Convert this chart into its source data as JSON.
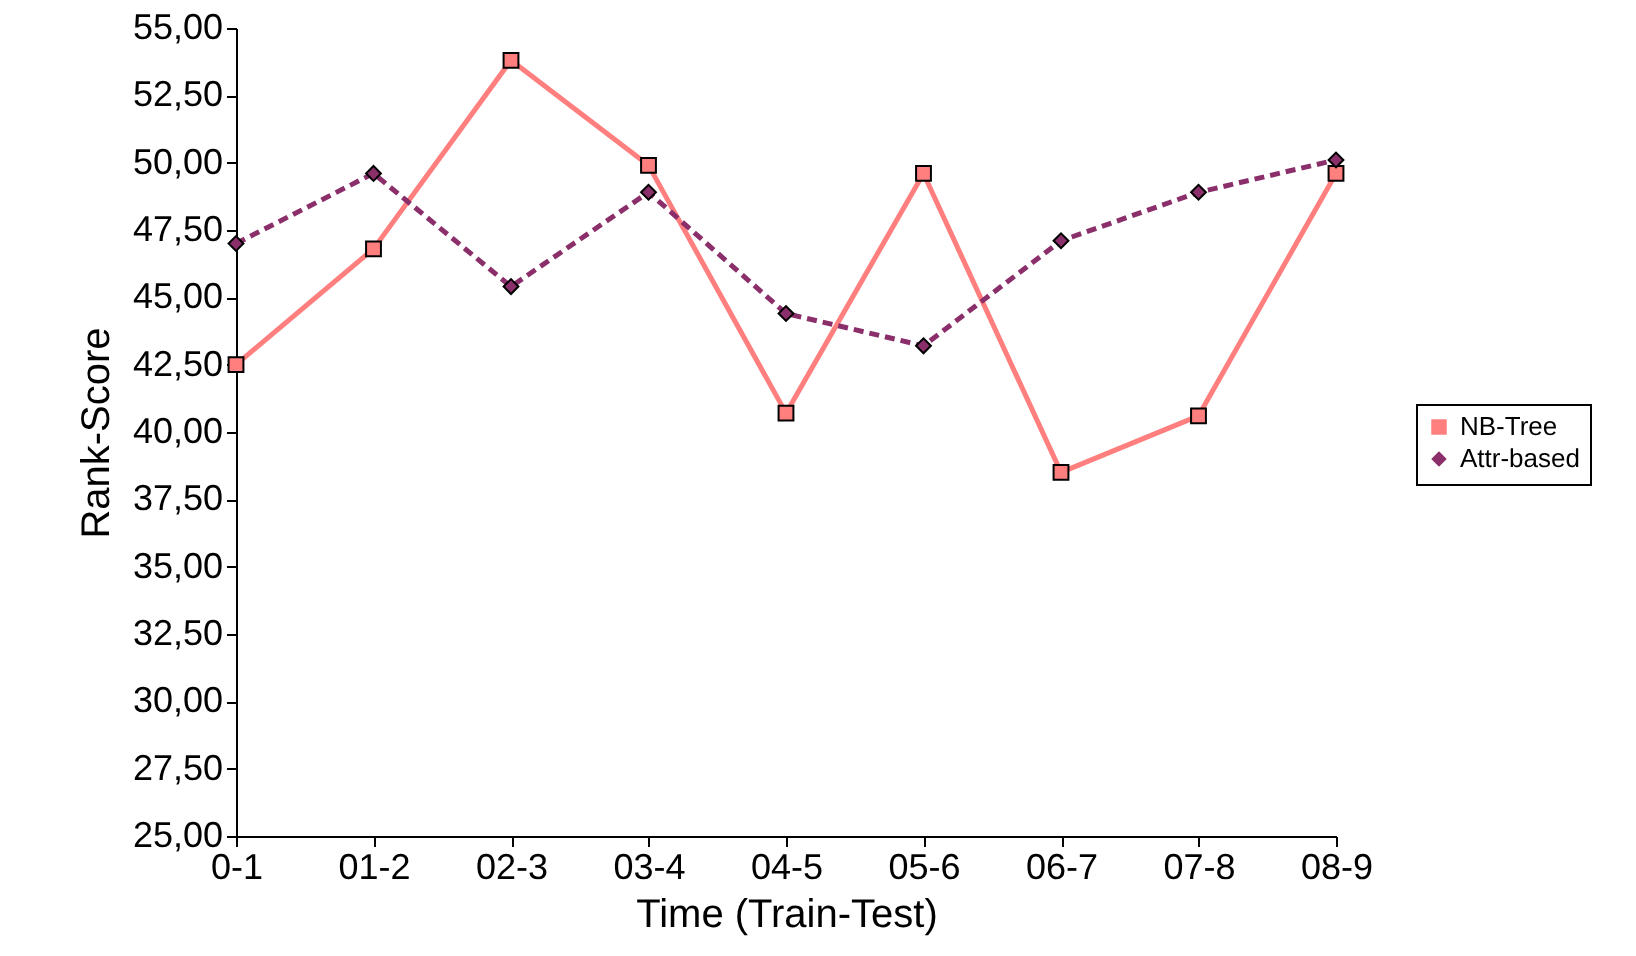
{
  "chart_data": {
    "type": "line",
    "xlabel": "Time (Train-Test)",
    "ylabel": "Rank-Score",
    "categories": [
      "0-1",
      "01-2",
      "02-3",
      "03-4",
      "04-5",
      "05-6",
      "06-7",
      "07-8",
      "08-9"
    ],
    "series": [
      {
        "name": "NB-Tree",
        "color": "#ff7f7f",
        "marker": "square",
        "line_style": "solid",
        "values": [
          42.5,
          46.8,
          53.8,
          49.9,
          40.7,
          49.6,
          38.5,
          40.6,
          49.6
        ]
      },
      {
        "name": "Attr-based",
        "color": "#8b2f6b",
        "marker": "diamond",
        "line_style": "dashed",
        "values": [
          47.0,
          49.6,
          45.4,
          48.9,
          44.4,
          43.2,
          47.1,
          48.9,
          50.1
        ]
      }
    ],
    "ylim": [
      25,
      55
    ],
    "yticks": [
      {
        "value": 25,
        "label": "25,00"
      },
      {
        "value": 27.5,
        "label": "27,50"
      },
      {
        "value": 30,
        "label": "30,00"
      },
      {
        "value": 32.5,
        "label": "32,50"
      },
      {
        "value": 35,
        "label": "35,00"
      },
      {
        "value": 37.5,
        "label": "37,50"
      },
      {
        "value": 40,
        "label": "40,00"
      },
      {
        "value": 42.5,
        "label": "42,50"
      },
      {
        "value": 45,
        "label": "45,00"
      },
      {
        "value": 47.5,
        "label": "47,50"
      },
      {
        "value": 50,
        "label": "50,00"
      },
      {
        "value": 52.5,
        "label": "52,50"
      },
      {
        "value": 55,
        "label": "55,00"
      }
    ],
    "grid": false,
    "legend": "right"
  }
}
